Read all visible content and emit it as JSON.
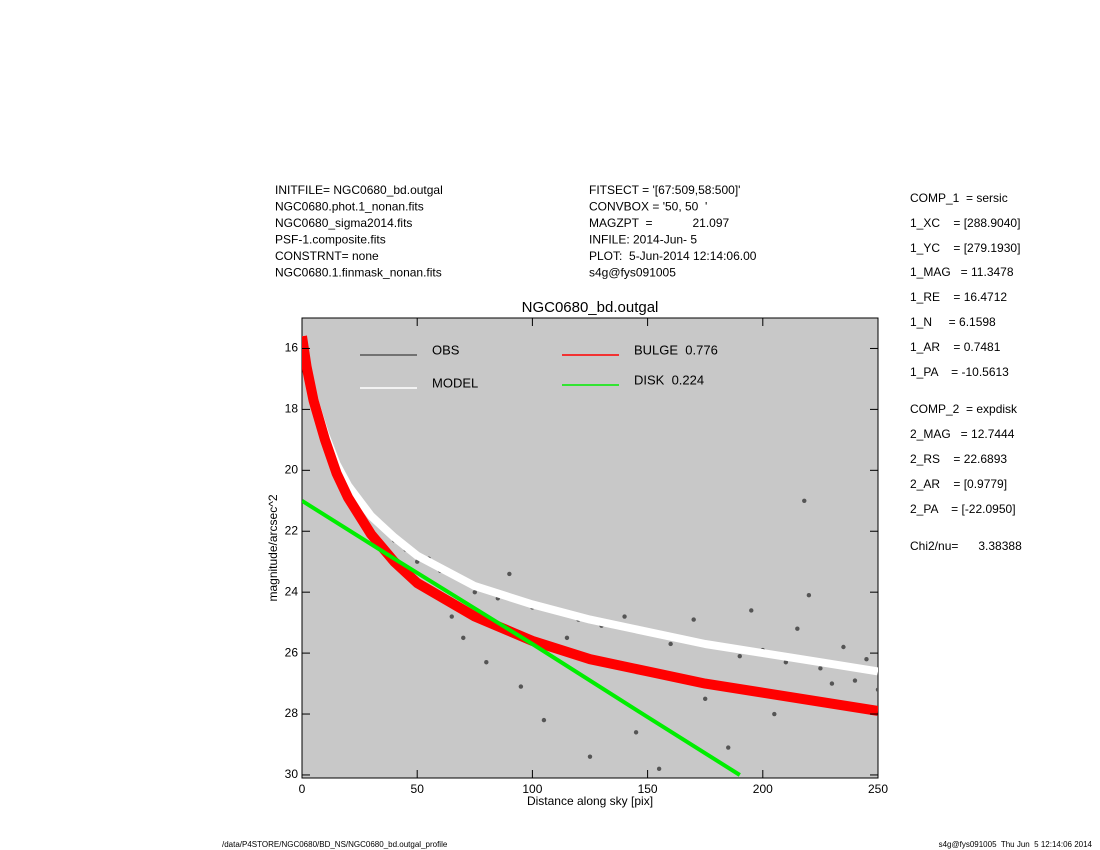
{
  "header": {
    "left": [
      "INITFILE= NGC0680_bd.outgal",
      "NGC0680.phot.1_nonan.fits",
      "NGC0680_sigma2014.fits",
      "PSF-1.composite.fits",
      "CONSTRNT= none",
      "NGC0680.1.finmask_nonan.fits"
    ],
    "middle": [
      "FITSECT = '[67:509,58:500]'",
      "CONVBOX = '50, 50  '",
      "MAGZPT  =            21.097",
      "INFILE: 2014-Jun- 5",
      "PLOT:  5-Jun-2014 12:14:06.00",
      "s4g@fys091005"
    ]
  },
  "parameters": [
    "COMP_1  = sersic",
    "1_XC    = [288.9040]",
    "1_YC    = [279.1930]",
    "1_MAG   = 11.3478",
    "1_RE    = 16.4712",
    "1_N     = 6.1598",
    "1_AR    = 0.7481",
    "1_PA    = -10.5613",
    "COMP_2  = expdisk",
    "2_MAG   = 12.7444",
    "2_RS    = 22.6893",
    "2_AR    = [0.9779]",
    "2_PA    = [-22.0950]",
    "Chi2/nu=      3.38388"
  ],
  "footer": {
    "left": "/data/P4STORE/NGC0680/BD_NS/NGC0680_bd.outgal_profile",
    "right": "s4g@fys091005  Thu Jun  5 12:14:06 2014"
  },
  "chart_data": {
    "type": "scatter",
    "title": "NGC0680_bd.outgal",
    "x_label": "Distance along sky [pix]",
    "y_label": "magnitude/arcsec^2",
    "xlim": [
      0,
      250
    ],
    "xticks": [
      0,
      50,
      100,
      150,
      200,
      250
    ],
    "ylim": [
      30.1,
      15
    ],
    "yticks": [
      16,
      18,
      20,
      22,
      24,
      26,
      28,
      30
    ],
    "background": "#c8c8c8",
    "series": [
      {
        "name": "OBS",
        "type": "scatter",
        "color": "#555555",
        "x": [
          1,
          3,
          5,
          8,
          10,
          14,
          18,
          22,
          26,
          30,
          35,
          40,
          45,
          50,
          55,
          60,
          65,
          70,
          70,
          75,
          80,
          85,
          90,
          95,
          100,
          105,
          110,
          115,
          120,
          125,
          130,
          135,
          140,
          145,
          150,
          155,
          160,
          165,
          170,
          175,
          180,
          185,
          190,
          195,
          200,
          205,
          210,
          215,
          218,
          220,
          225,
          230,
          235,
          240,
          245,
          250
        ],
        "values": [
          15.8,
          16.6,
          17.4,
          18.3,
          18.9,
          19.7,
          20.3,
          20.8,
          21.1,
          21.5,
          21.9,
          22.3,
          22.6,
          23.0,
          22.9,
          23.3,
          24.8,
          23.6,
          25.5,
          24.0,
          26.3,
          24.2,
          23.4,
          27.1,
          24.5,
          28.2,
          24.6,
          25.5,
          24.9,
          29.4,
          25.1,
          26.4,
          24.8,
          28.6,
          25.3,
          29.8,
          25.7,
          26.9,
          24.9,
          27.5,
          25.8,
          29.1,
          26.1,
          24.6,
          25.9,
          28.0,
          26.3,
          25.2,
          21.0,
          24.1,
          26.5,
          27.0,
          25.8,
          26.9,
          26.2,
          27.2
        ]
      },
      {
        "name": "MODEL",
        "type": "line",
        "color": "#ffffff",
        "x": [
          0,
          2,
          5,
          10,
          15,
          20,
          30,
          40,
          50,
          75,
          100,
          125,
          150,
          175,
          200,
          225,
          250
        ],
        "values": [
          15.6,
          16.5,
          17.6,
          18.8,
          19.8,
          20.5,
          21.5,
          22.2,
          22.8,
          23.8,
          24.4,
          24.9,
          25.3,
          25.7,
          26.0,
          26.3,
          26.6
        ]
      },
      {
        "name": "BULGE  0.776",
        "type": "line",
        "color": "#ff0000",
        "x": [
          0,
          2,
          5,
          10,
          15,
          20,
          30,
          40,
          50,
          75,
          100,
          125,
          150,
          175,
          200,
          225,
          250
        ],
        "values": [
          15.6,
          16.6,
          17.7,
          19.0,
          20.1,
          20.9,
          22.1,
          23.0,
          23.7,
          24.8,
          25.6,
          26.2,
          26.6,
          27.0,
          27.3,
          27.6,
          27.9
        ]
      },
      {
        "name": "DISK  0.224",
        "type": "line",
        "color": "#00ee00",
        "x": [
          0,
          40,
          100,
          150,
          190
        ],
        "values": [
          21.0,
          22.9,
          25.7,
          28.1,
          30.0
        ]
      }
    ]
  }
}
